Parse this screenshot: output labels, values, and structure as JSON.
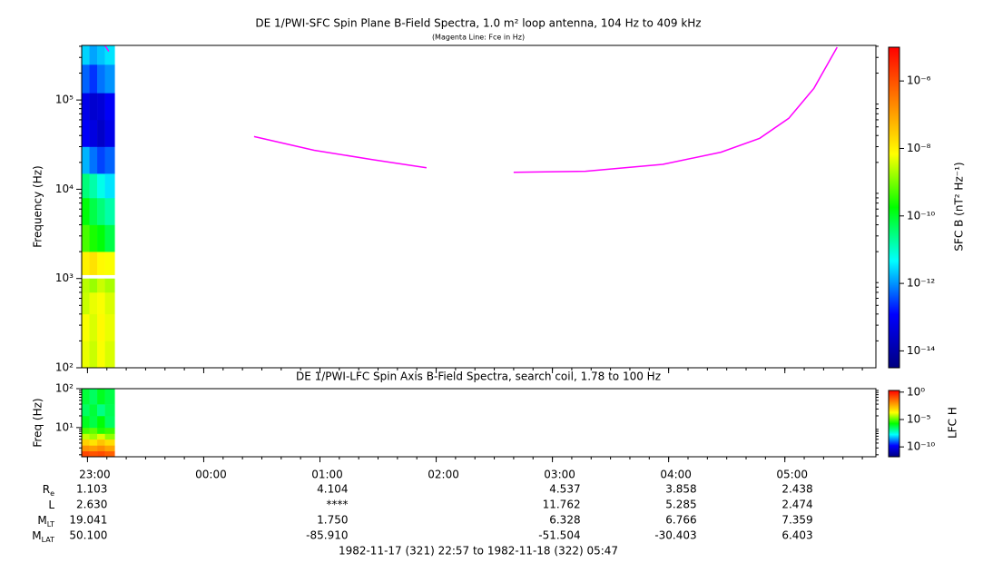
{
  "chart_data": [
    {
      "type": "heatmap",
      "title": "DE 1/PWI-SFC  Spin Plane B-Field Spectra, 1.0 m² loop antenna, 104 Hz to 409 kHz",
      "subtitle": "(Magenta Line: Fce in Hz)",
      "ylabel": "Frequency (Hz)",
      "colorbar_label": "SFC B (nT² Hz⁻¹)",
      "xlim": [
        0,
        410
      ],
      "ylim": [
        100,
        409000
      ],
      "yscale": "log",
      "yticks": [
        {
          "value": 100,
          "label": "10²"
        },
        {
          "value": 1000,
          "label": "10³"
        },
        {
          "value": 10000,
          "label": "10⁴"
        },
        {
          "value": 100000,
          "label": "10⁵"
        }
      ],
      "x_edges": [
        0,
        4,
        8,
        12,
        17
      ],
      "y_edges": [
        100,
        200,
        400,
        700,
        1000,
        1100,
        2000,
        4000,
        8000,
        15000,
        30000,
        60000,
        120000,
        250000,
        409000
      ],
      "z": [
        [
          -8.3,
          -8.5,
          -8.2,
          -8.4
        ],
        [
          -8.2,
          -8.4,
          -8.1,
          -8.3
        ],
        [
          -8.5,
          -8.3,
          -8.2,
          -8.4
        ],
        [
          -8.6,
          -8.8,
          -8.5,
          -8.7
        ],
        [
          null,
          null,
          null,
          null
        ],
        [
          -8.0,
          -7.8,
          -8.1,
          -8.2
        ],
        [
          -9.3,
          -9.6,
          -9.8,
          -10.2
        ],
        [
          -9.8,
          -10.2,
          -10.5,
          -10.8
        ],
        [
          -10.5,
          -10.8,
          -11.2,
          -11.5
        ],
        [
          -11.8,
          -12.2,
          -12.5,
          -12.3
        ],
        [
          -13.0,
          -13.3,
          -13.6,
          -13.2
        ],
        [
          -13.2,
          -13.5,
          -13.4,
          -13.0
        ],
        [
          -12.3,
          -12.6,
          -12.2,
          -12.0
        ],
        [
          -11.6,
          -11.9,
          -11.7,
          -11.5
        ]
      ],
      "zlim": [
        -14.5,
        -5
      ],
      "zticks": [
        {
          "value": -14,
          "label": "10⁻¹⁴"
        },
        {
          "value": -12,
          "label": "10⁻¹²"
        },
        {
          "value": -10,
          "label": "10⁻¹⁰"
        },
        {
          "value": -8,
          "label": "10⁻⁸"
        },
        {
          "value": -6,
          "label": "10⁻⁶"
        }
      ],
      "colormap": [
        "#000080",
        "#0000ff",
        "#00ffff",
        "#00ff00",
        "#ffff00",
        "#ff8000",
        "#ff0000"
      ],
      "overlay": {
        "color": "#ff00ff",
        "x": [
          12,
          14,
          null,
          89,
          120,
          150,
          178,
          null,
          223,
          260,
          300,
          330,
          350,
          365,
          378,
          390
        ],
        "y": [
          409000,
          350000,
          null,
          38900,
          27300,
          21500,
          17400,
          null,
          15500,
          15900,
          19000,
          26000,
          37200,
          62400,
          135000,
          390000
        ]
      }
    },
    {
      "type": "heatmap",
      "title": "DE 1/PWI-LFC  Spin Axis B-Field Spectra, search coil, 1.78 to 100 Hz",
      "ylabel": "Freq (Hz)",
      "colorbar_label": "LFC H",
      "xlim": [
        0,
        410
      ],
      "xticks": [
        {
          "value": 3,
          "label": "23:00"
        },
        {
          "value": 63,
          "label": "00:00"
        },
        {
          "value": 123,
          "label": "01:00"
        },
        {
          "value": 183,
          "label": "02:00"
        },
        {
          "value": 243,
          "label": "03:00"
        },
        {
          "value": 303,
          "label": "04:00"
        },
        {
          "value": 363,
          "label": "05:00"
        }
      ],
      "ylim": [
        1.78,
        100
      ],
      "yscale": "log",
      "yticks": [
        {
          "value": 10,
          "label": "10¹"
        },
        {
          "value": 100,
          "label": "10²"
        }
      ],
      "x_edges": [
        0,
        4,
        8,
        12,
        17
      ],
      "y_edges": [
        1.78,
        2.5,
        3.5,
        5,
        7,
        10,
        20,
        40,
        100
      ],
      "z": [
        [
          -0.8,
          -1,
          -0.9,
          -1.2
        ],
        [
          -2,
          -2.2,
          -1.9,
          -2.3
        ],
        [
          -3,
          -3.3,
          -2.8,
          -3.2
        ],
        [
          -4.2,
          -4.5,
          -4.0,
          -4.6
        ],
        [
          -5.2,
          -5.0,
          -5.5,
          -5.3
        ],
        [
          -6,
          -6.3,
          -5.8,
          -6.5
        ],
        [
          -6.5,
          -6.2,
          -6.8,
          -6.4
        ],
        [
          -6.2,
          -6.5,
          -6.0,
          -6.3
        ]
      ],
      "zlim": [
        -11.8,
        0.3
      ],
      "zticks": [
        {
          "value": -10,
          "label": "10⁻¹⁰"
        },
        {
          "value": -5,
          "label": "10⁻⁵"
        },
        {
          "value": 0,
          "label": "10⁰"
        }
      ],
      "colormap": [
        "#000080",
        "#0000ff",
        "#00ffff",
        "#00ff00",
        "#ffff00",
        "#ff8000",
        "#ff0000"
      ]
    }
  ],
  "ephemeris": {
    "rows": [
      {
        "label": "R",
        "sub": "e",
        "values": [
          "1.103",
          null,
          "4.104",
          null,
          "4.537",
          "3.858",
          "2.438"
        ]
      },
      {
        "label": "L",
        "values": [
          "2.630",
          null,
          "****",
          null,
          "11.762",
          "5.285",
          "2.474"
        ]
      },
      {
        "label": "M",
        "sub": "LT",
        "values": [
          "19.041",
          null,
          "1.750",
          null,
          "6.328",
          "6.766",
          "7.359"
        ]
      },
      {
        "label": "M",
        "sub": "LAT",
        "values": [
          "50.100",
          null,
          "-85.910",
          null,
          "-51.504",
          "-30.403",
          "6.403"
        ]
      }
    ]
  },
  "footer": "1982-11-17 (321) 22:57 to 1982-11-18 (322) 05:47"
}
